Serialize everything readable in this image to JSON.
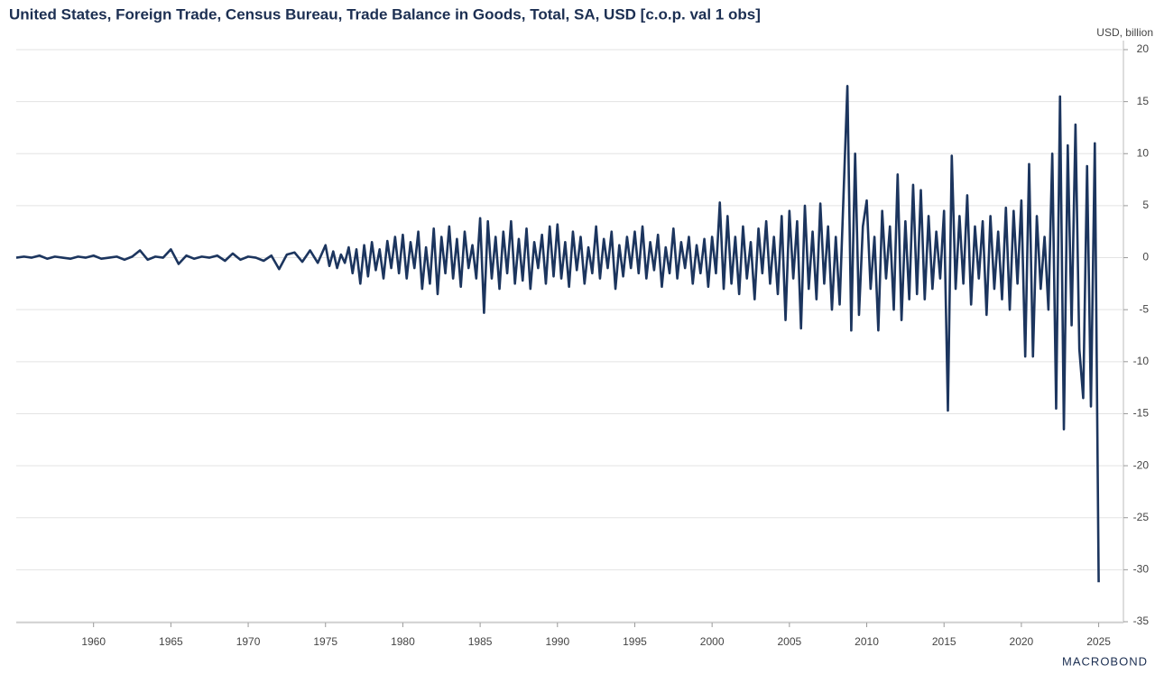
{
  "chart_data": {
    "type": "line",
    "title": "United States, Foreign Trade, Census Bureau, Trade Balance in Goods, Total, SA, USD [c.o.p. val 1 obs]",
    "y_label": "USD, billion",
    "brand": "MACROBOND",
    "x": [
      1955,
      1955.5,
      1956,
      1956.5,
      1957,
      1957.5,
      1958,
      1958.5,
      1959,
      1959.5,
      1960,
      1960.5,
      1961,
      1961.5,
      1962,
      1962.5,
      1963,
      1963.5,
      1964,
      1964.5,
      1965,
      1965.5,
      1966,
      1966.5,
      1967,
      1967.5,
      1968,
      1968.5,
      1969,
      1969.5,
      1970,
      1970.5,
      1971,
      1971.5,
      1972,
      1972.5,
      1973,
      1973.5,
      1974,
      1974.5,
      1975,
      1975.25,
      1975.5,
      1975.75,
      1976,
      1976.25,
      1976.5,
      1976.75,
      1977,
      1977.25,
      1977.5,
      1977.75,
      1978,
      1978.25,
      1978.5,
      1978.75,
      1979,
      1979.25,
      1979.5,
      1979.75,
      1980,
      1980.25,
      1980.5,
      1980.75,
      1981,
      1981.25,
      1981.5,
      1981.75,
      1982,
      1982.25,
      1982.5,
      1982.75,
      1983,
      1983.25,
      1983.5,
      1983.75,
      1984,
      1984.25,
      1984.5,
      1984.75,
      1985,
      1985.25,
      1985.5,
      1985.75,
      1986,
      1986.25,
      1986.5,
      1986.75,
      1987,
      1987.25,
      1987.5,
      1987.75,
      1988,
      1988.25,
      1988.5,
      1988.75,
      1989,
      1989.25,
      1989.5,
      1989.75,
      1990,
      1990.25,
      1990.5,
      1990.75,
      1991,
      1991.25,
      1991.5,
      1991.75,
      1992,
      1992.25,
      1992.5,
      1992.75,
      1993,
      1993.25,
      1993.5,
      1993.75,
      1994,
      1994.25,
      1994.5,
      1994.75,
      1995,
      1995.25,
      1995.5,
      1995.75,
      1996,
      1996.25,
      1996.5,
      1996.75,
      1997,
      1997.25,
      1997.5,
      1997.75,
      1998,
      1998.25,
      1998.5,
      1998.75,
      1999,
      1999.25,
      1999.5,
      1999.75,
      2000,
      2000.25,
      2000.5,
      2000.75,
      2001,
      2001.25,
      2001.5,
      2001.75,
      2002,
      2002.25,
      2002.5,
      2002.75,
      2003,
      2003.25,
      2003.5,
      2003.75,
      2004,
      2004.25,
      2004.5,
      2004.75,
      2005,
      2005.25,
      2005.5,
      2005.75,
      2006,
      2006.25,
      2006.5,
      2006.75,
      2007,
      2007.25,
      2007.5,
      2007.75,
      2008,
      2008.25,
      2008.5,
      2008.75,
      2009,
      2009.25,
      2009.5,
      2009.75,
      2010,
      2010.25,
      2010.5,
      2010.75,
      2011,
      2011.25,
      2011.5,
      2011.75,
      2012,
      2012.25,
      2012.5,
      2012.75,
      2013,
      2013.25,
      2013.5,
      2013.75,
      2014,
      2014.25,
      2014.5,
      2014.75,
      2015,
      2015.25,
      2015.5,
      2015.75,
      2016,
      2016.25,
      2016.5,
      2016.75,
      2017,
      2017.25,
      2017.5,
      2017.75,
      2018,
      2018.25,
      2018.5,
      2018.75,
      2019,
      2019.25,
      2019.5,
      2019.75,
      2020,
      2020.25,
      2020.5,
      2020.75,
      2021,
      2021.25,
      2021.5,
      2021.75,
      2022,
      2022.25,
      2022.5,
      2022.75,
      2023,
      2023.25,
      2023.5,
      2023.75,
      2024,
      2024.25,
      2024.5,
      2024.75,
      2025
    ],
    "series": [
      {
        "color": "#1c355e",
        "values": [
          0,
          0.1,
          0,
          0.2,
          -0.1,
          0.1,
          0,
          -0.1,
          0.1,
          0,
          0.2,
          -0.1,
          0,
          0.1,
          -0.2,
          0.1,
          0.7,
          -0.2,
          0.1,
          0,
          0.8,
          -0.6,
          0.2,
          -0.1,
          0.1,
          0,
          0.2,
          -0.3,
          0.4,
          -0.2,
          0.1,
          0,
          -0.3,
          0.2,
          -1.1,
          0.3,
          0.5,
          -0.4,
          0.7,
          -0.5,
          1.2,
          -0.8,
          0.6,
          -1.0,
          0.3,
          -0.5,
          1.0,
          -1.5,
          0.8,
          -2.5,
          1.2,
          -1.8,
          1.5,
          -1.2,
          0.8,
          -2.0,
          1.6,
          -1.0,
          2.0,
          -1.5,
          2.2,
          -2.0,
          1.5,
          -1.0,
          2.5,
          -3.0,
          1.0,
          -2.5,
          2.8,
          -3.5,
          2.0,
          -1.5,
          3.0,
          -2.0,
          1.8,
          -2.8,
          2.5,
          -1.0,
          1.2,
          -2.0,
          3.8,
          -5.3,
          3.5,
          -2.0,
          2.0,
          -3.0,
          2.5,
          -1.5,
          3.5,
          -2.5,
          1.8,
          -2.2,
          2.8,
          -3.0,
          1.5,
          -1.0,
          2.2,
          -2.5,
          3.0,
          -1.8,
          3.2,
          -2.0,
          1.5,
          -2.8,
          2.5,
          -1.2,
          2.0,
          -2.5,
          1.0,
          -1.5,
          3.0,
          -2.0,
          1.8,
          -1.0,
          2.5,
          -3.0,
          1.2,
          -1.8,
          2.0,
          -1.0,
          2.5,
          -1.5,
          3.0,
          -2.0,
          1.5,
          -1.2,
          2.2,
          -2.8,
          1.0,
          -1.5,
          2.8,
          -2.0,
          1.5,
          -1.0,
          2.0,
          -2.5,
          1.2,
          -1.5,
          1.8,
          -2.8,
          2.0,
          -1.5,
          5.3,
          -3.0,
          4.0,
          -2.5,
          2.0,
          -3.5,
          3.0,
          -2.0,
          1.5,
          -4.0,
          2.8,
          -1.5,
          3.5,
          -2.5,
          2.0,
          -3.5,
          4.0,
          -6.0,
          4.5,
          -2.0,
          3.5,
          -6.8,
          5.0,
          -3.0,
          2.5,
          -4.0,
          5.2,
          -2.5,
          3.0,
          -5.0,
          2.0,
          -4.5,
          6.0,
          16.5,
          -7.0,
          10.0,
          -5.5,
          3.0,
          5.5,
          -3.0,
          2.0,
          -7.0,
          4.5,
          -2.0,
          3.0,
          -5.0,
          8.0,
          -6.0,
          3.5,
          -4.0,
          7.0,
          -3.5,
          6.5,
          -4.0,
          4.0,
          -3.0,
          2.5,
          -2.0,
          4.5,
          -14.7,
          9.8,
          -3.0,
          4.0,
          -2.5,
          6.0,
          -4.5,
          3.0,
          -2.0,
          3.5,
          -5.5,
          4.0,
          -3.0,
          2.5,
          -4.0,
          4.8,
          -5.0,
          4.5,
          -2.5,
          5.5,
          -9.5,
          9.0,
          -9.5,
          4.0,
          -3.0,
          2.0,
          -5.0,
          10.0,
          -14.5,
          15.5,
          -16.5,
          10.8,
          -6.5,
          12.8,
          -8.8,
          -13.5,
          8.8,
          -14.3,
          11.0,
          -31.2
        ]
      }
    ],
    "xlim": [
      1955,
      2026.6
    ],
    "xticks": [
      1960,
      1965,
      1970,
      1975,
      1980,
      1985,
      1990,
      1995,
      2000,
      2005,
      2010,
      2015,
      2020,
      2025
    ],
    "ylim": [
      -35,
      20
    ],
    "yticks": [
      -35,
      -30,
      -25,
      -20,
      -15,
      -10,
      -5,
      0,
      5,
      10,
      15,
      20
    ],
    "grid": true
  }
}
